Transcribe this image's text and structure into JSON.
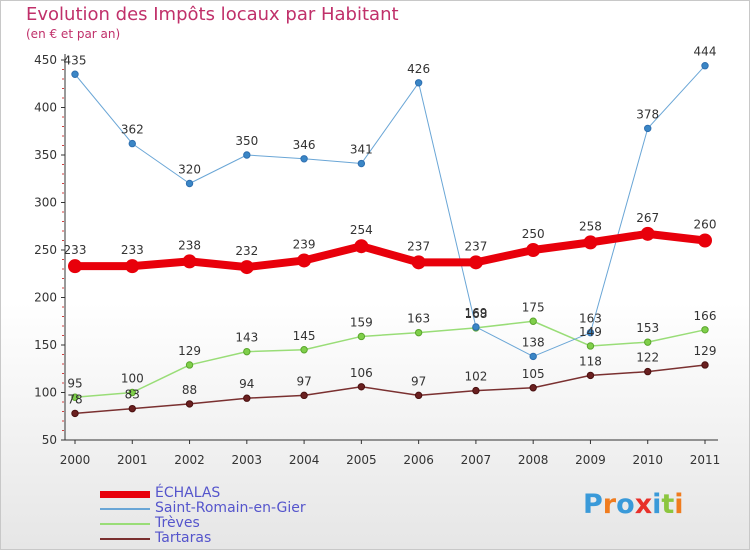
{
  "chart_data": {
    "type": "line",
    "title": "Evolution des Impôts locaux par Habitant",
    "subtitle": "(en € et par an)",
    "x": [
      "2000",
      "2001",
      "2002",
      "2003",
      "2004",
      "2005",
      "2006",
      "2007",
      "2008",
      "2009",
      "2010",
      "2011"
    ],
    "ylim": [
      50,
      450
    ],
    "yticks": [
      50,
      100,
      150,
      200,
      250,
      300,
      350,
      400,
      450
    ],
    "grid": false,
    "legend_position": "bottom-left",
    "series": [
      {
        "name": "ÉCHALAS",
        "color": "#e8000b",
        "values": [
          233,
          233,
          238,
          232,
          239,
          254,
          237,
          237,
          250,
          258,
          267,
          260
        ]
      },
      {
        "name": "Saint-Romain-en-Gier",
        "color": "#6aa6d6",
        "values": [
          435,
          362,
          320,
          350,
          346,
          341,
          426,
          169,
          138,
          163,
          378,
          444
        ]
      },
      {
        "name": "Trèves",
        "color": "#99dd77",
        "values": [
          95,
          100,
          129,
          143,
          145,
          159,
          163,
          168,
          175,
          149,
          153,
          166
        ]
      },
      {
        "name": "Tartaras",
        "color": "#7a3030",
        "values": [
          78,
          83,
          88,
          94,
          97,
          106,
          97,
          102,
          105,
          118,
          122,
          129
        ]
      }
    ]
  },
  "logo": {
    "letters": [
      "P",
      "r",
      "o",
      "x",
      "i",
      "t",
      "i"
    ],
    "colors": [
      "#3a9ad9",
      "#f07c1e",
      "#3a9ad9",
      "#e8302a",
      "#3a9ad9",
      "#8cc63f",
      "#f07c1e"
    ]
  }
}
